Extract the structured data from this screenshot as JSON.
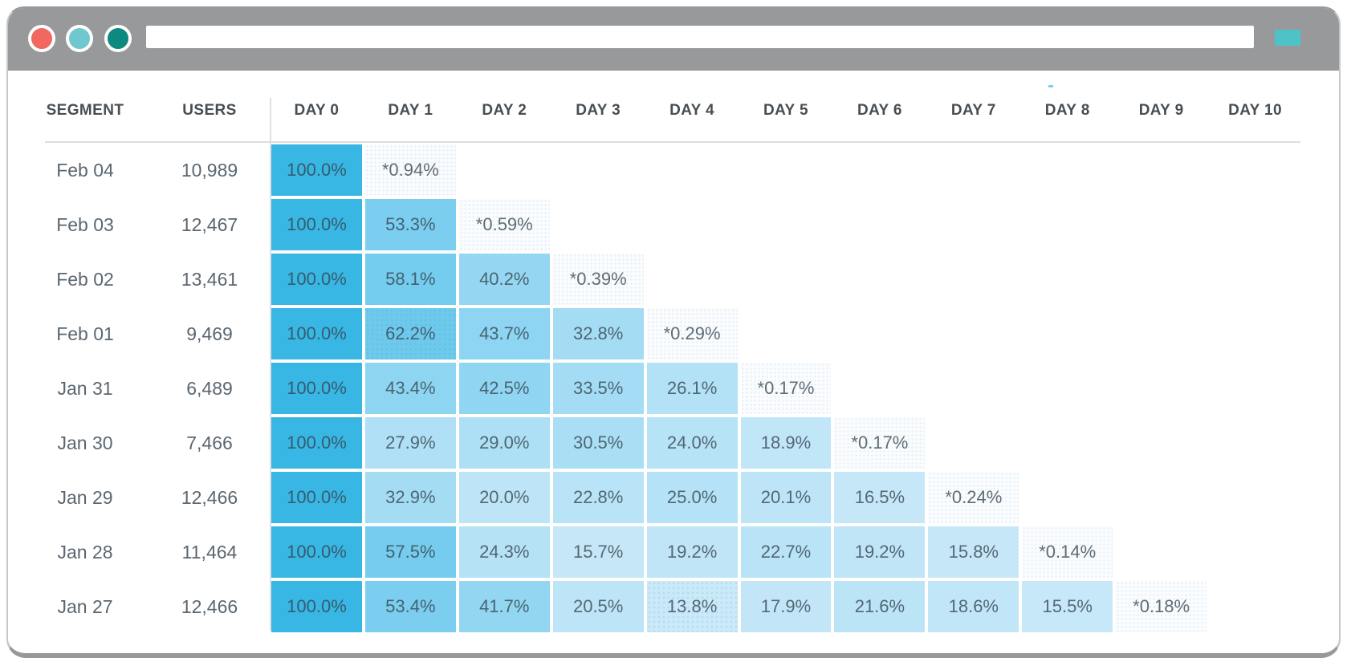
{
  "browser": {
    "chrome_color": "#98999B",
    "window_controls": [
      {
        "name": "close",
        "color": "#F0685F"
      },
      {
        "name": "minimize",
        "color": "#6EC8CD"
      },
      {
        "name": "zoom",
        "color": "#0D8A80"
      }
    ],
    "url_bar": {
      "value": "",
      "placeholder": ""
    },
    "action_button_color": "#4EC3C7"
  },
  "colors": {
    "accent_blue": "#38B6E4",
    "starred_bg": "#FBFCFE",
    "scale_stops": [
      {
        "p": 13,
        "c": [
          203,
          233,
          249
        ]
      },
      {
        "p": 25,
        "c": [
          181,
          226,
          246
        ]
      },
      {
        "p": 50,
        "c": [
          128,
          208,
          240
        ]
      },
      {
        "p": 100,
        "c": [
          56,
          182,
          228
        ]
      }
    ]
  },
  "table": {
    "headers": {
      "segment": "SEGMENT",
      "users": "USERS",
      "days": [
        "DAY 0",
        "DAY 1",
        "DAY 2",
        "DAY 3",
        "DAY 4",
        "DAY 5",
        "DAY 6",
        "DAY 7",
        "DAY 8",
        "DAY 9",
        "DAY 10"
      ]
    },
    "rows": [
      {
        "segment": "Feb 04",
        "users": "10,989",
        "cells": [
          {
            "label": "100.0%",
            "pct": 100
          },
          {
            "label": "*0.94%",
            "pct": 0.94,
            "starred": true
          }
        ]
      },
      {
        "segment": "Feb 03",
        "users": "12,467",
        "cells": [
          {
            "label": "100.0%",
            "pct": 100
          },
          {
            "label": "53.3%",
            "pct": 53.3
          },
          {
            "label": "*0.59%",
            "pct": 0.59,
            "starred": true
          }
        ]
      },
      {
        "segment": "Feb 02",
        "users": "13,461",
        "cells": [
          {
            "label": "100.0%",
            "pct": 100
          },
          {
            "label": "58.1%",
            "pct": 58.1
          },
          {
            "label": "40.2%",
            "pct": 40.2
          },
          {
            "label": "*0.39%",
            "pct": 0.39,
            "starred": true
          }
        ]
      },
      {
        "segment": "Feb 01",
        "users": "9,469",
        "cells": [
          {
            "label": "100.0%",
            "pct": 100
          },
          {
            "label": "62.2%",
            "pct": 62.2,
            "halftone": true
          },
          {
            "label": "43.7%",
            "pct": 43.7
          },
          {
            "label": "32.8%",
            "pct": 32.8
          },
          {
            "label": "*0.29%",
            "pct": 0.29,
            "starred": true
          }
        ]
      },
      {
        "segment": "Jan 31",
        "users": "6,489",
        "cells": [
          {
            "label": "100.0%",
            "pct": 100
          },
          {
            "label": "43.4%",
            "pct": 43.4
          },
          {
            "label": "42.5%",
            "pct": 42.5
          },
          {
            "label": "33.5%",
            "pct": 33.5
          },
          {
            "label": "26.1%",
            "pct": 26.1
          },
          {
            "label": "*0.17%",
            "pct": 0.17,
            "starred": true
          }
        ]
      },
      {
        "segment": "Jan 30",
        "users": "7,466",
        "cells": [
          {
            "label": "100.0%",
            "pct": 100
          },
          {
            "label": "27.9%",
            "pct": 27.9
          },
          {
            "label": "29.0%",
            "pct": 29.0
          },
          {
            "label": "30.5%",
            "pct": 30.5
          },
          {
            "label": "24.0%",
            "pct": 24.0
          },
          {
            "label": "18.9%",
            "pct": 18.9
          },
          {
            "label": "*0.17%",
            "pct": 0.17,
            "starred": true
          }
        ]
      },
      {
        "segment": "Jan 29",
        "users": "12,466",
        "cells": [
          {
            "label": "100.0%",
            "pct": 100
          },
          {
            "label": "32.9%",
            "pct": 32.9
          },
          {
            "label": "20.0%",
            "pct": 20.0
          },
          {
            "label": "22.8%",
            "pct": 22.8
          },
          {
            "label": "25.0%",
            "pct": 25.0
          },
          {
            "label": "20.1%",
            "pct": 20.1
          },
          {
            "label": "16.5%",
            "pct": 16.5
          },
          {
            "label": "*0.24%",
            "pct": 0.24,
            "starred": true
          }
        ]
      },
      {
        "segment": "Jan 28",
        "users": "11,464",
        "cells": [
          {
            "label": "100.0%",
            "pct": 100
          },
          {
            "label": "57.5%",
            "pct": 57.5
          },
          {
            "label": "24.3%",
            "pct": 24.3
          },
          {
            "label": "15.7%",
            "pct": 15.7
          },
          {
            "label": "19.2%",
            "pct": 19.2
          },
          {
            "label": "22.7%",
            "pct": 22.7
          },
          {
            "label": "19.2%",
            "pct": 19.2
          },
          {
            "label": "15.8%",
            "pct": 15.8
          },
          {
            "label": "*0.14%",
            "pct": 0.14,
            "starred": true
          }
        ]
      },
      {
        "segment": "Jan 27",
        "users": "12,466",
        "cells": [
          {
            "label": "100.0%",
            "pct": 100
          },
          {
            "label": "53.4%",
            "pct": 53.4
          },
          {
            "label": "41.7%",
            "pct": 41.7
          },
          {
            "label": "20.5%",
            "pct": 20.5
          },
          {
            "label": "13.8%",
            "pct": 13.8,
            "halftone": true
          },
          {
            "label": "17.9%",
            "pct": 17.9
          },
          {
            "label": "21.6%",
            "pct": 21.6
          },
          {
            "label": "18.6%",
            "pct": 18.6
          },
          {
            "label": "15.5%",
            "pct": 15.5
          },
          {
            "label": "*0.18%",
            "pct": 0.18,
            "starred": true
          }
        ]
      }
    ]
  }
}
